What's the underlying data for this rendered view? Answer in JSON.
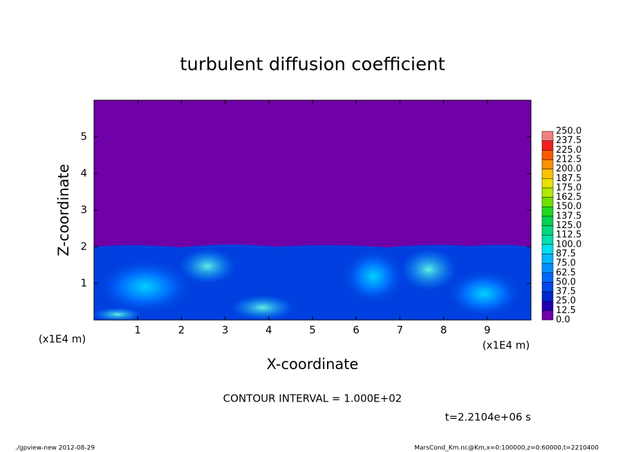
{
  "chart_data": {
    "type": "heatmap",
    "title": "turbulent diffusion coefficient",
    "x_label": "X-coordinate",
    "y_label": "Z-coordinate",
    "x_unit": "(x1E4 m)",
    "y_unit": "(x1E4 m)",
    "xlim": [
      0,
      10
    ],
    "xticks": [
      1,
      2,
      3,
      4,
      5,
      6,
      7,
      8,
      9
    ],
    "ylim": [
      0,
      6
    ],
    "yticks": [
      1,
      2,
      3,
      4,
      5
    ],
    "colorbar": {
      "levels": [
        {
          "value": 0,
          "label": "0.0"
        },
        12.5,
        {
          "value": 25,
          "label": "25.0"
        },
        37.5,
        {
          "value": 50,
          "label": "50.0"
        },
        62.5,
        {
          "value": 75,
          "label": "75.0"
        },
        87.5,
        {
          "value": 100,
          "label": "100.0"
        },
        112.5,
        {
          "value": 125,
          "label": "125.0"
        },
        137.5,
        {
          "value": 150,
          "label": "150.0"
        },
        162.5,
        {
          "value": 175,
          "label": "175.0"
        },
        187.5,
        {
          "value": 200,
          "label": "200.0"
        },
        212.5,
        {
          "value": 225,
          "label": "225.0"
        },
        237.5,
        {
          "value": 250,
          "label": "250.0"
        }
      ],
      "colors": [
        "#7000a8",
        "#2000b0",
        "#0028d0",
        "#0048e8",
        "#0068ff",
        "#0090ff",
        "#00b8ff",
        "#00e0f0",
        "#00e0b0",
        "#00d880",
        "#00d050",
        "#20d820",
        "#70e000",
        "#b0e800",
        "#e8e000",
        "#ffc000",
        "#ff9000",
        "#ff5800",
        "#f02020",
        "#f08080"
      ]
    },
    "contour_interval": "CONTOUR INTERVAL = 1.000E+02",
    "time": "t=2.2104e+06 s"
  },
  "footer": {
    "left": "./gpview-new  2012-08-29",
    "right": "MarsCond_Km.nc@Km,x=0:100000,z=0:60000,t=2210400"
  }
}
